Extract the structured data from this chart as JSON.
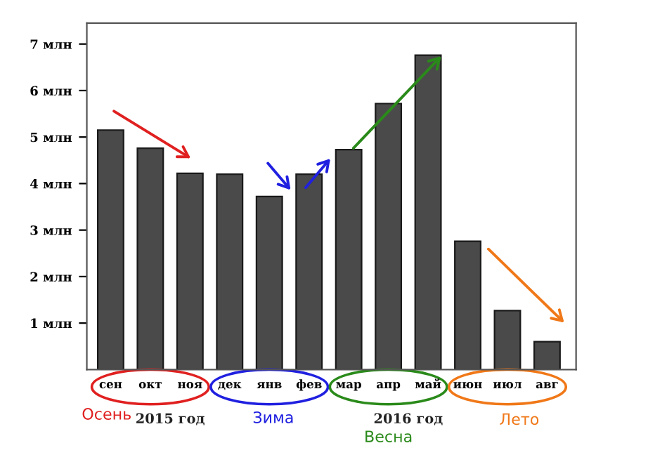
{
  "chart_data": {
    "type": "bar",
    "categories": [
      "сен",
      "окт",
      "ноя",
      "дек",
      "янв",
      "фев",
      "мар",
      "апр",
      "май",
      "июн",
      "июл",
      "авг"
    ],
    "series": [
      {
        "color": "#4a4a4a",
        "values": [
          5.15,
          4.76,
          4.22,
          4.2,
          3.72,
          4.2,
          4.73,
          5.72,
          6.76,
          2.76,
          1.27,
          0.6
        ]
      }
    ],
    "ylim": [
      0,
      7.45
    ],
    "yticks": [
      {
        "value": 1,
        "label": "1 млн"
      },
      {
        "value": 2,
        "label": "2 млн"
      },
      {
        "value": 3,
        "label": "3 млн"
      },
      {
        "value": 4,
        "label": "4 млн"
      },
      {
        "value": 5,
        "label": "5 млн"
      },
      {
        "value": 6,
        "label": "6 млн"
      },
      {
        "value": 7,
        "label": "7 млн"
      }
    ],
    "annotations": [
      "2015 год",
      "2016 год",
      "Осень",
      "Зима",
      "Весна",
      "Лето"
    ],
    "grid": false
  }
}
